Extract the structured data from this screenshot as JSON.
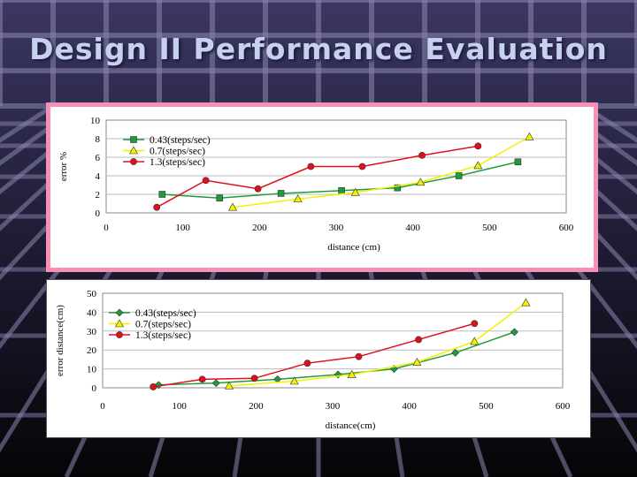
{
  "slide": {
    "title": "Design II Performance Evaluation"
  },
  "colors": {
    "series_green": "#1f9c3a",
    "series_yellow": "#f2f200",
    "series_red": "#e0101a",
    "top_frame": "#f78fb6",
    "bg_grid": "#8a86b0"
  },
  "chart_data": [
    {
      "type": "line",
      "title": "",
      "xlabel": "distance (cm)",
      "ylabel": "error %",
      "xlim": [
        0,
        600
      ],
      "ylim": [
        0,
        10
      ],
      "xticks": [
        "0",
        "100",
        "200",
        "300",
        "400",
        "500",
        "600"
      ],
      "yticks": [
        "0",
        "2",
        "4",
        "6",
        "8",
        "10"
      ],
      "grid": true,
      "legend_position": "top-left",
      "series": [
        {
          "name": "0.43(steps/sec)",
          "color": "#1f9c3a",
          "marker": "square",
          "x": [
            73,
            148,
            228,
            307,
            380,
            460,
            537
          ],
          "y": [
            2.0,
            1.6,
            2.1,
            2.4,
            2.7,
            4.0,
            5.5
          ]
        },
        {
          "name": "0.7(steps/sec)",
          "color": "#f2f200",
          "marker": "triangle",
          "x": [
            165,
            250,
            325,
            410,
            485,
            552
          ],
          "y": [
            0.6,
            1.5,
            2.2,
            3.3,
            5.1,
            8.2
          ]
        },
        {
          "name": "1.3(steps/sec)",
          "color": "#e0101a",
          "marker": "circle",
          "x": [
            66,
            130,
            198,
            267,
            334,
            412,
            485
          ],
          "y": [
            0.6,
            3.5,
            2.6,
            5.0,
            5.0,
            6.2,
            7.2
          ]
        }
      ]
    },
    {
      "type": "line",
      "title": "",
      "xlabel": "distance(cm)",
      "ylabel": "error distance(cm)",
      "xlim": [
        0,
        600
      ],
      "ylim": [
        0,
        50
      ],
      "xticks": [
        "0",
        "100",
        "200",
        "300",
        "400",
        "500",
        "600"
      ],
      "yticks": [
        "0",
        "10",
        "20",
        "30",
        "40",
        "50"
      ],
      "grid": true,
      "legend_position": "top-left",
      "series": [
        {
          "name": "0.43(steps/sec)",
          "color": "#1f9c3a",
          "marker": "diamond",
          "x": [
            73,
            148,
            228,
            307,
            380,
            460,
            537
          ],
          "y": [
            1.5,
            2.5,
            4.5,
            7,
            10,
            18.5,
            29.5
          ]
        },
        {
          "name": "0.7(steps/sec)",
          "color": "#f2f200",
          "marker": "triangle",
          "x": [
            165,
            250,
            325,
            410,
            485,
            552
          ],
          "y": [
            1,
            3.5,
            7,
            13.5,
            24.5,
            45
          ]
        },
        {
          "name": "1.3(steps/sec)",
          "color": "#e0101a",
          "marker": "circle",
          "x": [
            66,
            130,
            198,
            267,
            334,
            412,
            485
          ],
          "y": [
            0.5,
            4.5,
            5,
            13,
            16.5,
            25.5,
            34
          ]
        }
      ]
    }
  ]
}
